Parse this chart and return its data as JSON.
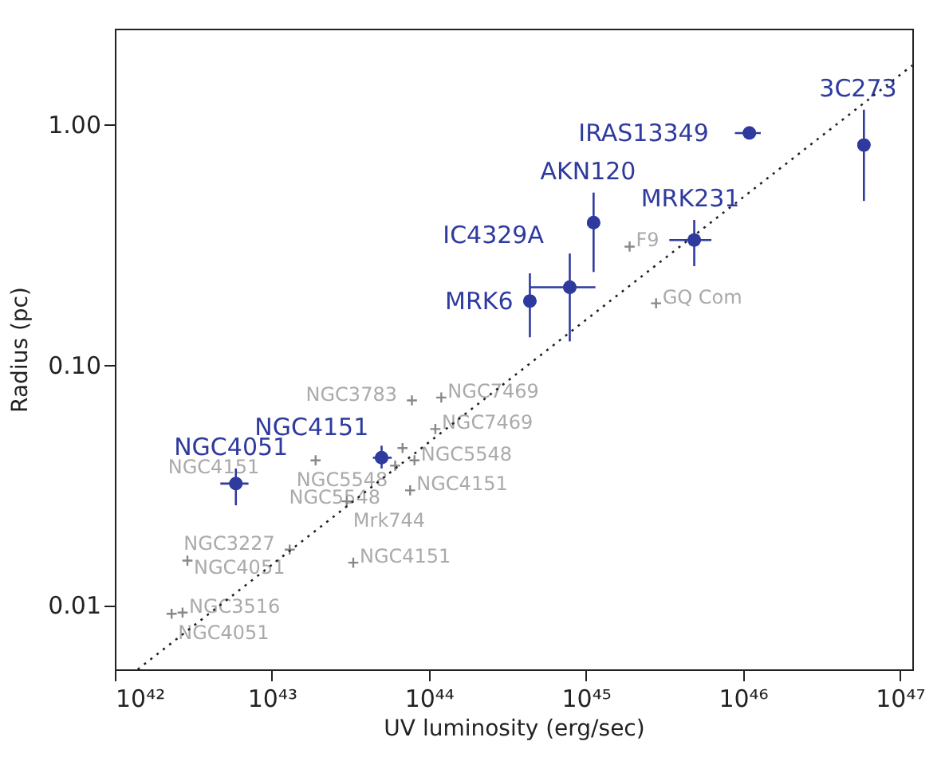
{
  "chart_data": {
    "type": "scatter",
    "xlabel": "UV luminosity (erg/sec)",
    "ylabel": "Radius (pc)",
    "log": "xy",
    "grid": false,
    "xlim": [
      1e+42,
      1.2e+47
    ],
    "ylim": [
      0.0054,
      2.5
    ],
    "xticks": [
      {
        "value": 1e+42,
        "label": "10⁴²"
      },
      {
        "value": 1e+43,
        "label": "10⁴³"
      },
      {
        "value": 1e+44,
        "label": "10⁴⁴"
      },
      {
        "value": 1e+45,
        "label": "10⁴⁵"
      },
      {
        "value": 1e+46,
        "label": "10⁴⁶"
      },
      {
        "value": 1e+47,
        "label": "10⁴⁷"
      }
    ],
    "yticks": [
      {
        "value": 0.01,
        "label": "0.01"
      },
      {
        "value": 0.1,
        "label": "0.10"
      },
      {
        "value": 1,
        "label": "1.00"
      }
    ],
    "series": [
      {
        "color": "#2e3a9e",
        "marker": "circle",
        "x": [
          5.9e+42,
          5e+43,
          4.4e+44,
          7.9e+44,
          1.12e+45,
          4.9e+45,
          1.1e+46,
          5.9e+46
        ],
        "values": [
          0.032,
          0.041,
          0.184,
          0.21,
          0.39,
          0.33,
          0.92,
          0.82
        ],
        "errors": [
          [
            0.026,
            0.037
          ],
          [
            0.037,
            0.046
          ],
          [
            0.13,
            0.24
          ],
          [
            0.125,
            0.29
          ],
          [
            0.243,
            0.52
          ],
          [
            0.257,
            0.4
          ],
          null,
          [
            0.48,
            1.15
          ]
        ],
        "xerrors": [
          [
            4.7e+42,
            7.1e+42
          ],
          [
            4.4e+43,
            5.8e+43
          ],
          null,
          [
            4.4e+44,
            1.15e+45
          ],
          null,
          [
            3.4e+45,
            6.3e+45
          ],
          [
            8.9e+45,
            1.3e+46
          ],
          null
        ]
      },
      {
        "color": "#888888",
        "marker": "cross",
        "x": [
          7.8e+43,
          1.2e+44,
          1.1e+44,
          1.9e+43,
          6.8e+43,
          6.1e+43,
          8.1e+43,
          3e+43,
          7.6e+43,
          1.3e+43,
          2.9e+42,
          3.3e+43,
          2.3e+42,
          2.7e+42,
          1.9e+45,
          2.8e+45
        ],
        "values": [
          0.071,
          0.073,
          0.054,
          0.04,
          0.045,
          0.038,
          0.04,
          0.027,
          0.03,
          0.017,
          0.0153,
          0.015,
          0.0092,
          0.0093,
          0.31,
          0.18
        ]
      },
      {
        "type": "line",
        "color": "#222222",
        "line_style": "dotted",
        "marker": "none",
        "x": [
          1.4e+42,
          1.2e+47
        ],
        "values": [
          0.0054,
          1.76
        ]
      }
    ],
    "annotations": [
      {
        "text": "NGC4051",
        "x": 5.9e+42,
        "y": 0.032
      },
      {
        "text": "NGC4151",
        "x": 5e+43,
        "y": 0.041
      },
      {
        "text": "MRK6",
        "x": 4.4e+44,
        "y": 0.184
      },
      {
        "text": "IC4329A",
        "x": 7.9e+44,
        "y": 0.21
      },
      {
        "text": "AKN120",
        "x": 1.12e+45,
        "y": 0.39
      },
      {
        "text": "MRK231",
        "x": 4.9e+45,
        "y": 0.33
      },
      {
        "text": "IRAS13349",
        "x": 1.1e+46,
        "y": 0.92
      },
      {
        "text": "3C273",
        "x": 5.9e+46,
        "y": 0.82
      },
      {
        "text": "NGC3783",
        "x": 7.8e+43,
        "y": 0.071
      },
      {
        "text": "NGC7469",
        "x": 1.2e+44,
        "y": 0.073
      },
      {
        "text": "NGC7469",
        "x": 1.1e+44,
        "y": 0.054
      },
      {
        "text": "NGC4151",
        "x": 1.9e+43,
        "y": 0.04
      },
      {
        "text": "NGC5548",
        "x": 6.8e+43,
        "y": 0.045
      },
      {
        "text": "NGC5548",
        "x": 6.1e+43,
        "y": 0.038
      },
      {
        "text": "NGC5548",
        "x": 8.1e+43,
        "y": 0.04
      },
      {
        "text": "Mrk744",
        "x": 3e+43,
        "y": 0.027
      },
      {
        "text": "NGC4151",
        "x": 7.6e+43,
        "y": 0.03
      },
      {
        "text": "NGC3227",
        "x": 1.3e+43,
        "y": 0.017
      },
      {
        "text": "NGC4051",
        "x": 2.9e+42,
        "y": 0.0153
      },
      {
        "text": "NGC4151",
        "x": 3.3e+43,
        "y": 0.015
      },
      {
        "text": "NGC4051",
        "x": 2.3e+42,
        "y": 0.0092
      },
      {
        "text": "NGC3516",
        "x": 2.7e+42,
        "y": 0.0093
      },
      {
        "text": "F9",
        "x": 1.9e+45,
        "y": 0.31
      },
      {
        "text": "GQ Com",
        "x": 2.8e+45,
        "y": 0.18
      }
    ]
  }
}
